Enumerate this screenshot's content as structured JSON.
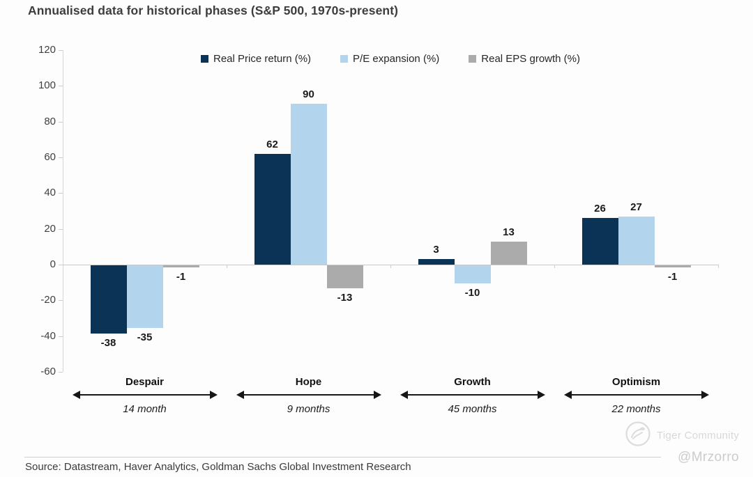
{
  "title": "Annualised data for historical phases (S&P 500, 1970s-present)",
  "source": "Source: Datastream, Haver Analytics, Goldman Sachs Global Investment Research",
  "watermark": {
    "community": "Tiger Community",
    "handle": "@Mrzorro"
  },
  "chart_data": {
    "type": "bar",
    "title": "Annualised data for historical phases (S&P 500, 1970s-present)",
    "categories": [
      "Despair",
      "Hope",
      "Growth",
      "Optimism"
    ],
    "category_durations": [
      "14 month",
      "9 months",
      "45 months",
      "22 months"
    ],
    "series": [
      {
        "name": "Real Price return (%)",
        "color": "#0b3356",
        "values": [
          -38,
          62,
          3,
          26
        ]
      },
      {
        "name": "P/E expansion (%)",
        "color": "#b2d4ec",
        "values": [
          -35,
          90,
          -10,
          27
        ]
      },
      {
        "name": "Real EPS growth (%)",
        "color": "#ababab",
        "values": [
          -1,
          -13,
          13,
          -1
        ]
      }
    ],
    "ylim": [
      -60,
      120
    ],
    "ytick_step": 20,
    "ytick_labels": [
      "120",
      "100",
      "80",
      "60",
      "40",
      "20",
      "0",
      "-20",
      "-40",
      "-60"
    ],
    "grid": "zero-line-only",
    "legend_position": "top-center",
    "value_labels": "bold, above positive bars / below negative bars"
  }
}
